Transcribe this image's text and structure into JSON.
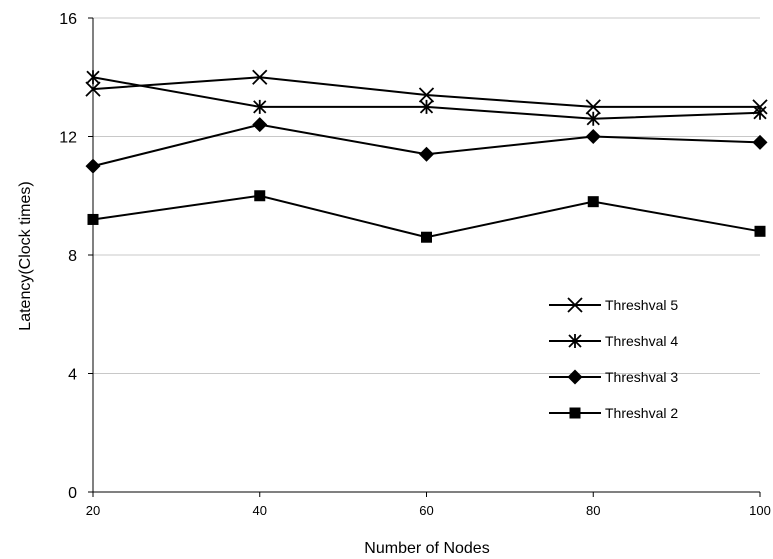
{
  "chart_data": {
    "type": "line",
    "x": [
      20,
      40,
      60,
      80,
      100
    ],
    "xlabel": "Number of Nodes",
    "ylabel": "Latency(Clock times)",
    "xlim": [
      20,
      100
    ],
    "ylim": [
      0,
      16
    ],
    "x_ticks": [
      "20",
      "40",
      "60",
      "80",
      "100"
    ],
    "y_ticks": [
      "0",
      "4",
      "8",
      "12",
      "16"
    ],
    "grid": "horizontal",
    "legend_position": "right",
    "series": [
      {
        "name": "Threshval 5",
        "marker": "x",
        "values": [
          13.6,
          14.0,
          13.4,
          13.0,
          13.0
        ]
      },
      {
        "name": "Threshval 4",
        "marker": "star",
        "values": [
          14.0,
          13.0,
          13.0,
          12.6,
          12.8
        ]
      },
      {
        "name": "Threshval 3",
        "marker": "diamond",
        "values": [
          11.0,
          12.4,
          11.4,
          12.0,
          11.8
        ]
      },
      {
        "name": "Threshval 2",
        "marker": "square",
        "values": [
          9.2,
          10.0,
          8.6,
          9.8,
          8.8
        ]
      }
    ]
  }
}
